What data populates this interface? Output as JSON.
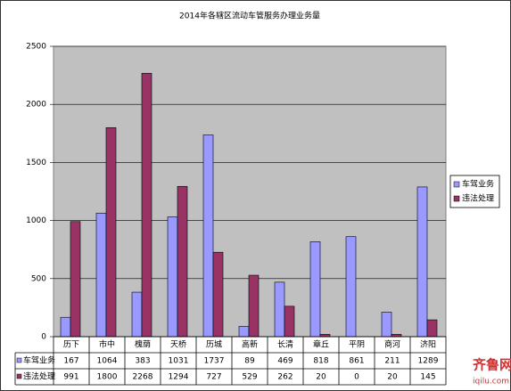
{
  "chart_data": {
    "type": "bar",
    "title": "2014年各辖区流动车管服务办理业务量",
    "categories": [
      "历下",
      "市中",
      "槐荫",
      "天桥",
      "历城",
      "高新",
      "长清",
      "章丘",
      "平阴",
      "商河",
      "济阳"
    ],
    "series": [
      {
        "name": "车驾业务",
        "color": "#9999ff",
        "values": [
          167,
          1064,
          383,
          1031,
          1737,
          89,
          469,
          818,
          861,
          211,
          1289
        ]
      },
      {
        "name": "违法处理",
        "color": "#993366",
        "values": [
          991,
          1800,
          2268,
          1294,
          727,
          529,
          262,
          20,
          0,
          20,
          145
        ]
      }
    ],
    "ylim": [
      0,
      2500
    ],
    "yticks": [
      0,
      500,
      1000,
      1500,
      2000,
      2500
    ],
    "grid": true,
    "legend": "right",
    "data_table": true,
    "watermark": {
      "name": "齐鲁网",
      "url": "iqilu.com"
    }
  }
}
